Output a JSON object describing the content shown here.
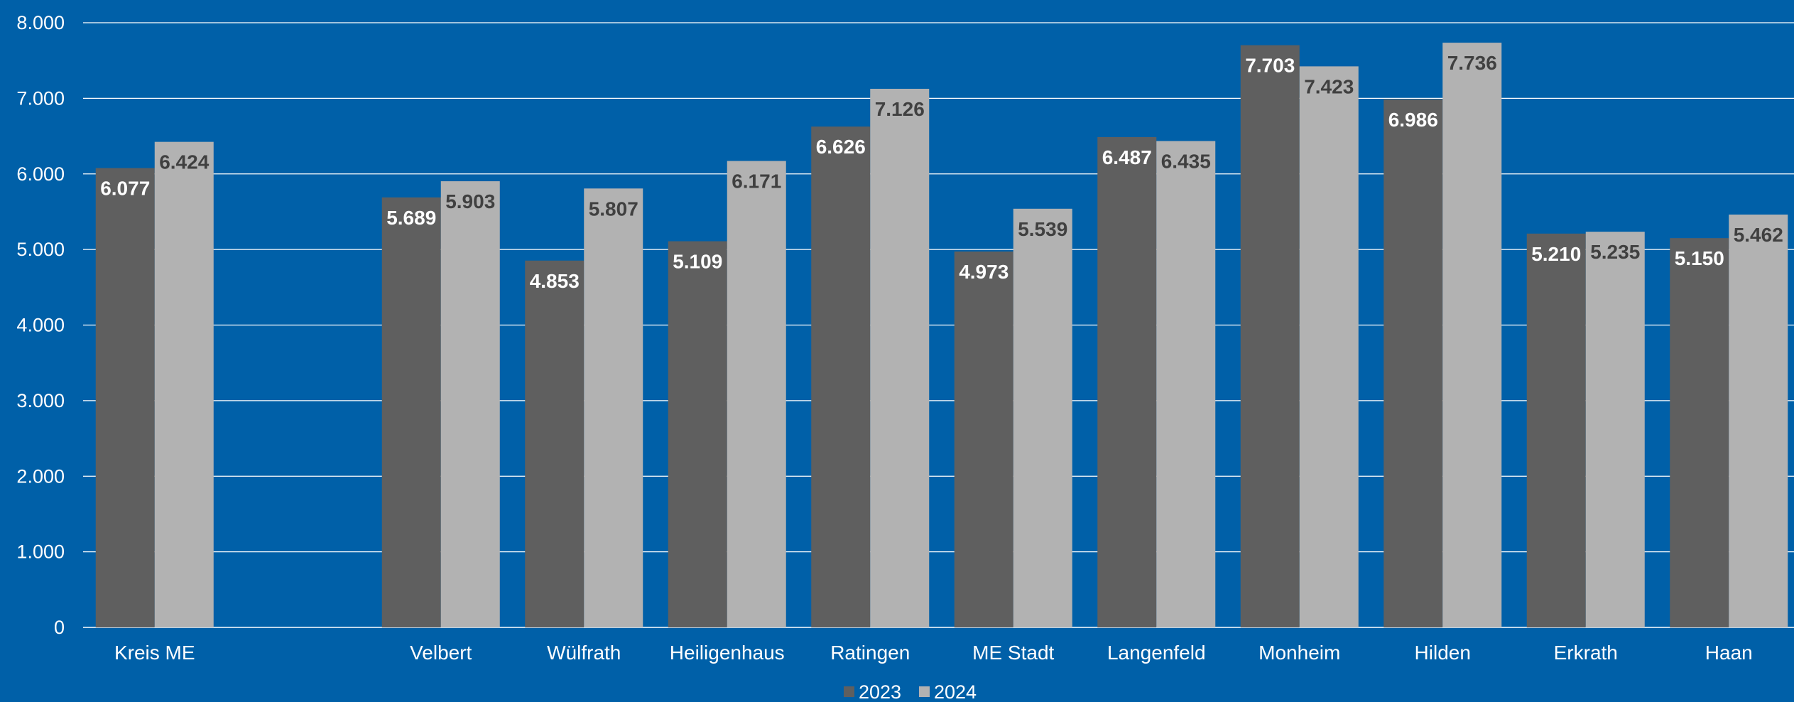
{
  "chart_data": {
    "type": "bar",
    "categories": [
      "Kreis ME",
      "",
      "Velbert",
      "Wülfrath",
      "Heiligenhaus",
      "Ratingen",
      "ME Stadt",
      "Langenfeld",
      "Monheim",
      "Hilden",
      "Erkrath",
      "Haan"
    ],
    "series": [
      {
        "name": "2023",
        "values": [
          6077,
          null,
          5689,
          4853,
          5109,
          6626,
          4973,
          6487,
          7703,
          6986,
          5210,
          5150
        ],
        "labels": [
          "6.077",
          "",
          "5.689",
          "4.853",
          "5.109",
          "6.626",
          "4.973",
          "6.487",
          "7.703",
          "6.986",
          "5.210",
          "5.150"
        ],
        "color": "#5F5F5F",
        "label_color": "#FFFFFF"
      },
      {
        "name": "2024",
        "values": [
          6424,
          null,
          5903,
          5807,
          6171,
          7126,
          5539,
          6435,
          7423,
          7736,
          5235,
          5462
        ],
        "labels": [
          "6.424",
          "",
          "5.903",
          "5.807",
          "6.171",
          "7.126",
          "5.539",
          "6.435",
          "7.423",
          "7.736",
          "5.235",
          "5.462"
        ],
        "color": "#B2B2B2",
        "label_color": "#404040"
      }
    ],
    "ylim": [
      0,
      8000
    ],
    "yticks": [
      0,
      1000,
      2000,
      3000,
      4000,
      5000,
      6000,
      7000,
      8000
    ],
    "ytick_labels": [
      "0",
      "1.000",
      "2.000",
      "3.000",
      "4.000",
      "5.000",
      "6.000",
      "7.000",
      "8.000"
    ],
    "grid": true,
    "legend": "bottom",
    "colors": {
      "background": "#0060A8",
      "gridline": "#FFFFFF"
    }
  }
}
